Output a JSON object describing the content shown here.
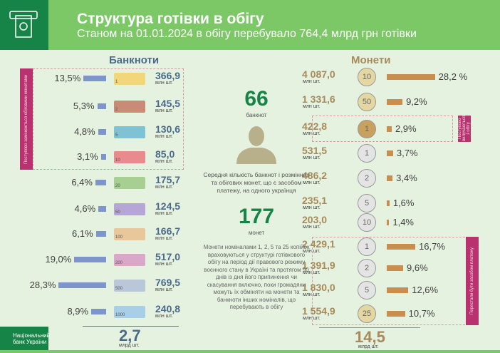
{
  "header": {
    "title": "Структура готівки в обігу",
    "subtitle": "Станом на 01.01.2024 в обігу перебувало 764,4 млрд грн готівки",
    "icon": "atm-cash-icon"
  },
  "colors": {
    "banknote_bar": "#7d95cb",
    "coin_bar": "#c98e4e",
    "tag": "#b8326f",
    "brand_green": "#178447"
  },
  "banknotes": {
    "title": "Банкноти",
    "unit": "млн шт.",
    "tag": "Поступово замінюються обіговими монетами",
    "items": [
      {
        "denom": "1",
        "pct": "13,5%",
        "p": 13.5,
        "value": "366,9",
        "color": "#f2d67a"
      },
      {
        "denom": "2",
        "pct": "5,3%",
        "p": 5.3,
        "value": "145,5",
        "color": "#c98a76"
      },
      {
        "denom": "5",
        "pct": "4,8%",
        "p": 4.8,
        "value": "130,6",
        "color": "#7fc2d4"
      },
      {
        "denom": "10",
        "pct": "3,1%",
        "p": 3.1,
        "value": "85,0",
        "color": "#e98a8e"
      },
      {
        "denom": "20",
        "pct": "6,4%",
        "p": 6.4,
        "value": "175,7",
        "color": "#a8cf92"
      },
      {
        "denom": "50",
        "pct": "4,6%",
        "p": 4.6,
        "value": "124,5",
        "color": "#b6a6d6"
      },
      {
        "denom": "100",
        "pct": "6,1%",
        "p": 6.1,
        "value": "166,7",
        "color": "#e8c79a"
      },
      {
        "denom": "200",
        "pct": "19,0%",
        "p": 19.0,
        "value": "517,0",
        "color": "#d9a7c7"
      },
      {
        "denom": "500",
        "pct": "28,3%",
        "p": 28.3,
        "value": "769,5",
        "color": "#b9c7d8"
      },
      {
        "denom": "1000",
        "pct": "8,9%",
        "p": 8.9,
        "value": "240,8",
        "color": "#a9cfe6"
      }
    ],
    "total": "2,7",
    "total_unit": "млрд шт."
  },
  "coins": {
    "title": "Монети",
    "unit": "млн шт.",
    "tag_top": "Поступово вилучаються з обігу",
    "tag_bottom": "Перестали бути засобом платежу",
    "items": [
      {
        "denom": "10",
        "value": "4 087,0",
        "pct": "28,2 %",
        "p": 28.2,
        "metal": "gold"
      },
      {
        "denom": "50",
        "value": "1 331,6",
        "pct": "9,2%",
        "p": 9.2,
        "metal": "gold"
      },
      {
        "denom": "1",
        "value": "422,8",
        "pct": "2,9%",
        "p": 2.9,
        "metal": "bronze"
      },
      {
        "denom": "1",
        "value": "531,5",
        "pct": "3,7%",
        "p": 3.7,
        "metal": "silver"
      },
      {
        "denom": "2",
        "value": "486,2",
        "pct": "3,4%",
        "p": 3.4,
        "metal": "silver"
      },
      {
        "denom": "5",
        "value": "235,1",
        "pct": "1,6%",
        "p": 1.6,
        "metal": "silver"
      },
      {
        "denom": "10",
        "value": "203,0",
        "pct": "1,4%",
        "p": 1.4,
        "metal": "silver"
      },
      {
        "denom": "1",
        "value": "2 429,1",
        "pct": "16,7%",
        "p": 16.7,
        "metal": "silver"
      },
      {
        "denom": "2",
        "value": "1 391,9",
        "pct": "9,6%",
        "p": 9.6,
        "metal": "silver"
      },
      {
        "denom": "5",
        "value": "1 830,0",
        "pct": "12,6%",
        "p": 12.6,
        "metal": "silver"
      },
      {
        "denom": "25",
        "value": "1 554,9",
        "pct": "10,7%",
        "p": 10.7,
        "metal": "gold"
      }
    ],
    "total": "14,5",
    "total_unit": "млрд шт."
  },
  "center": {
    "banknotes_count": "66",
    "banknotes_label": "банкнот",
    "avg_text": "Середня кількість банкнот і розмінних та обігових монет, що є засобом платежу, на одного українця",
    "coins_count": "177",
    "coins_label": "монет",
    "note": "Монети номіналами 1, 2, 5 та 25 копійок враховуються у структурі готівкового обігу на період дії правового режиму воєнного стану в Україні та протягом 90 днів із дня його припинення чи скасування включно, поки громадяни можуть їх обміняти на монети та банкноти інших номіналів, що перебувають в обігу"
  },
  "footer": {
    "brand": "Національний банк України"
  }
}
